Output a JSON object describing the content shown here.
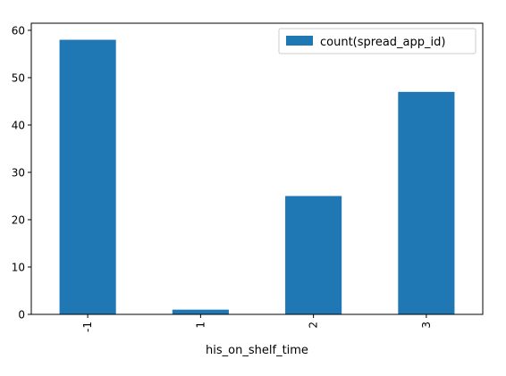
{
  "chart_data": {
    "type": "bar",
    "title": "",
    "xlabel": "his_on_shelf_time",
    "ylabel": "",
    "categories": [
      "-1",
      "1",
      "2",
      "3"
    ],
    "series": [
      {
        "name": "count(spread_app_id)",
        "values": [
          58,
          1,
          25,
          47
        ],
        "color": "#1f77b4"
      }
    ],
    "ylim": [
      0,
      61.5
    ],
    "yticks": [
      0,
      10,
      20,
      30,
      40,
      50,
      60
    ],
    "xtick_rotation": 90,
    "grid": false,
    "legend_position": "top-right"
  }
}
